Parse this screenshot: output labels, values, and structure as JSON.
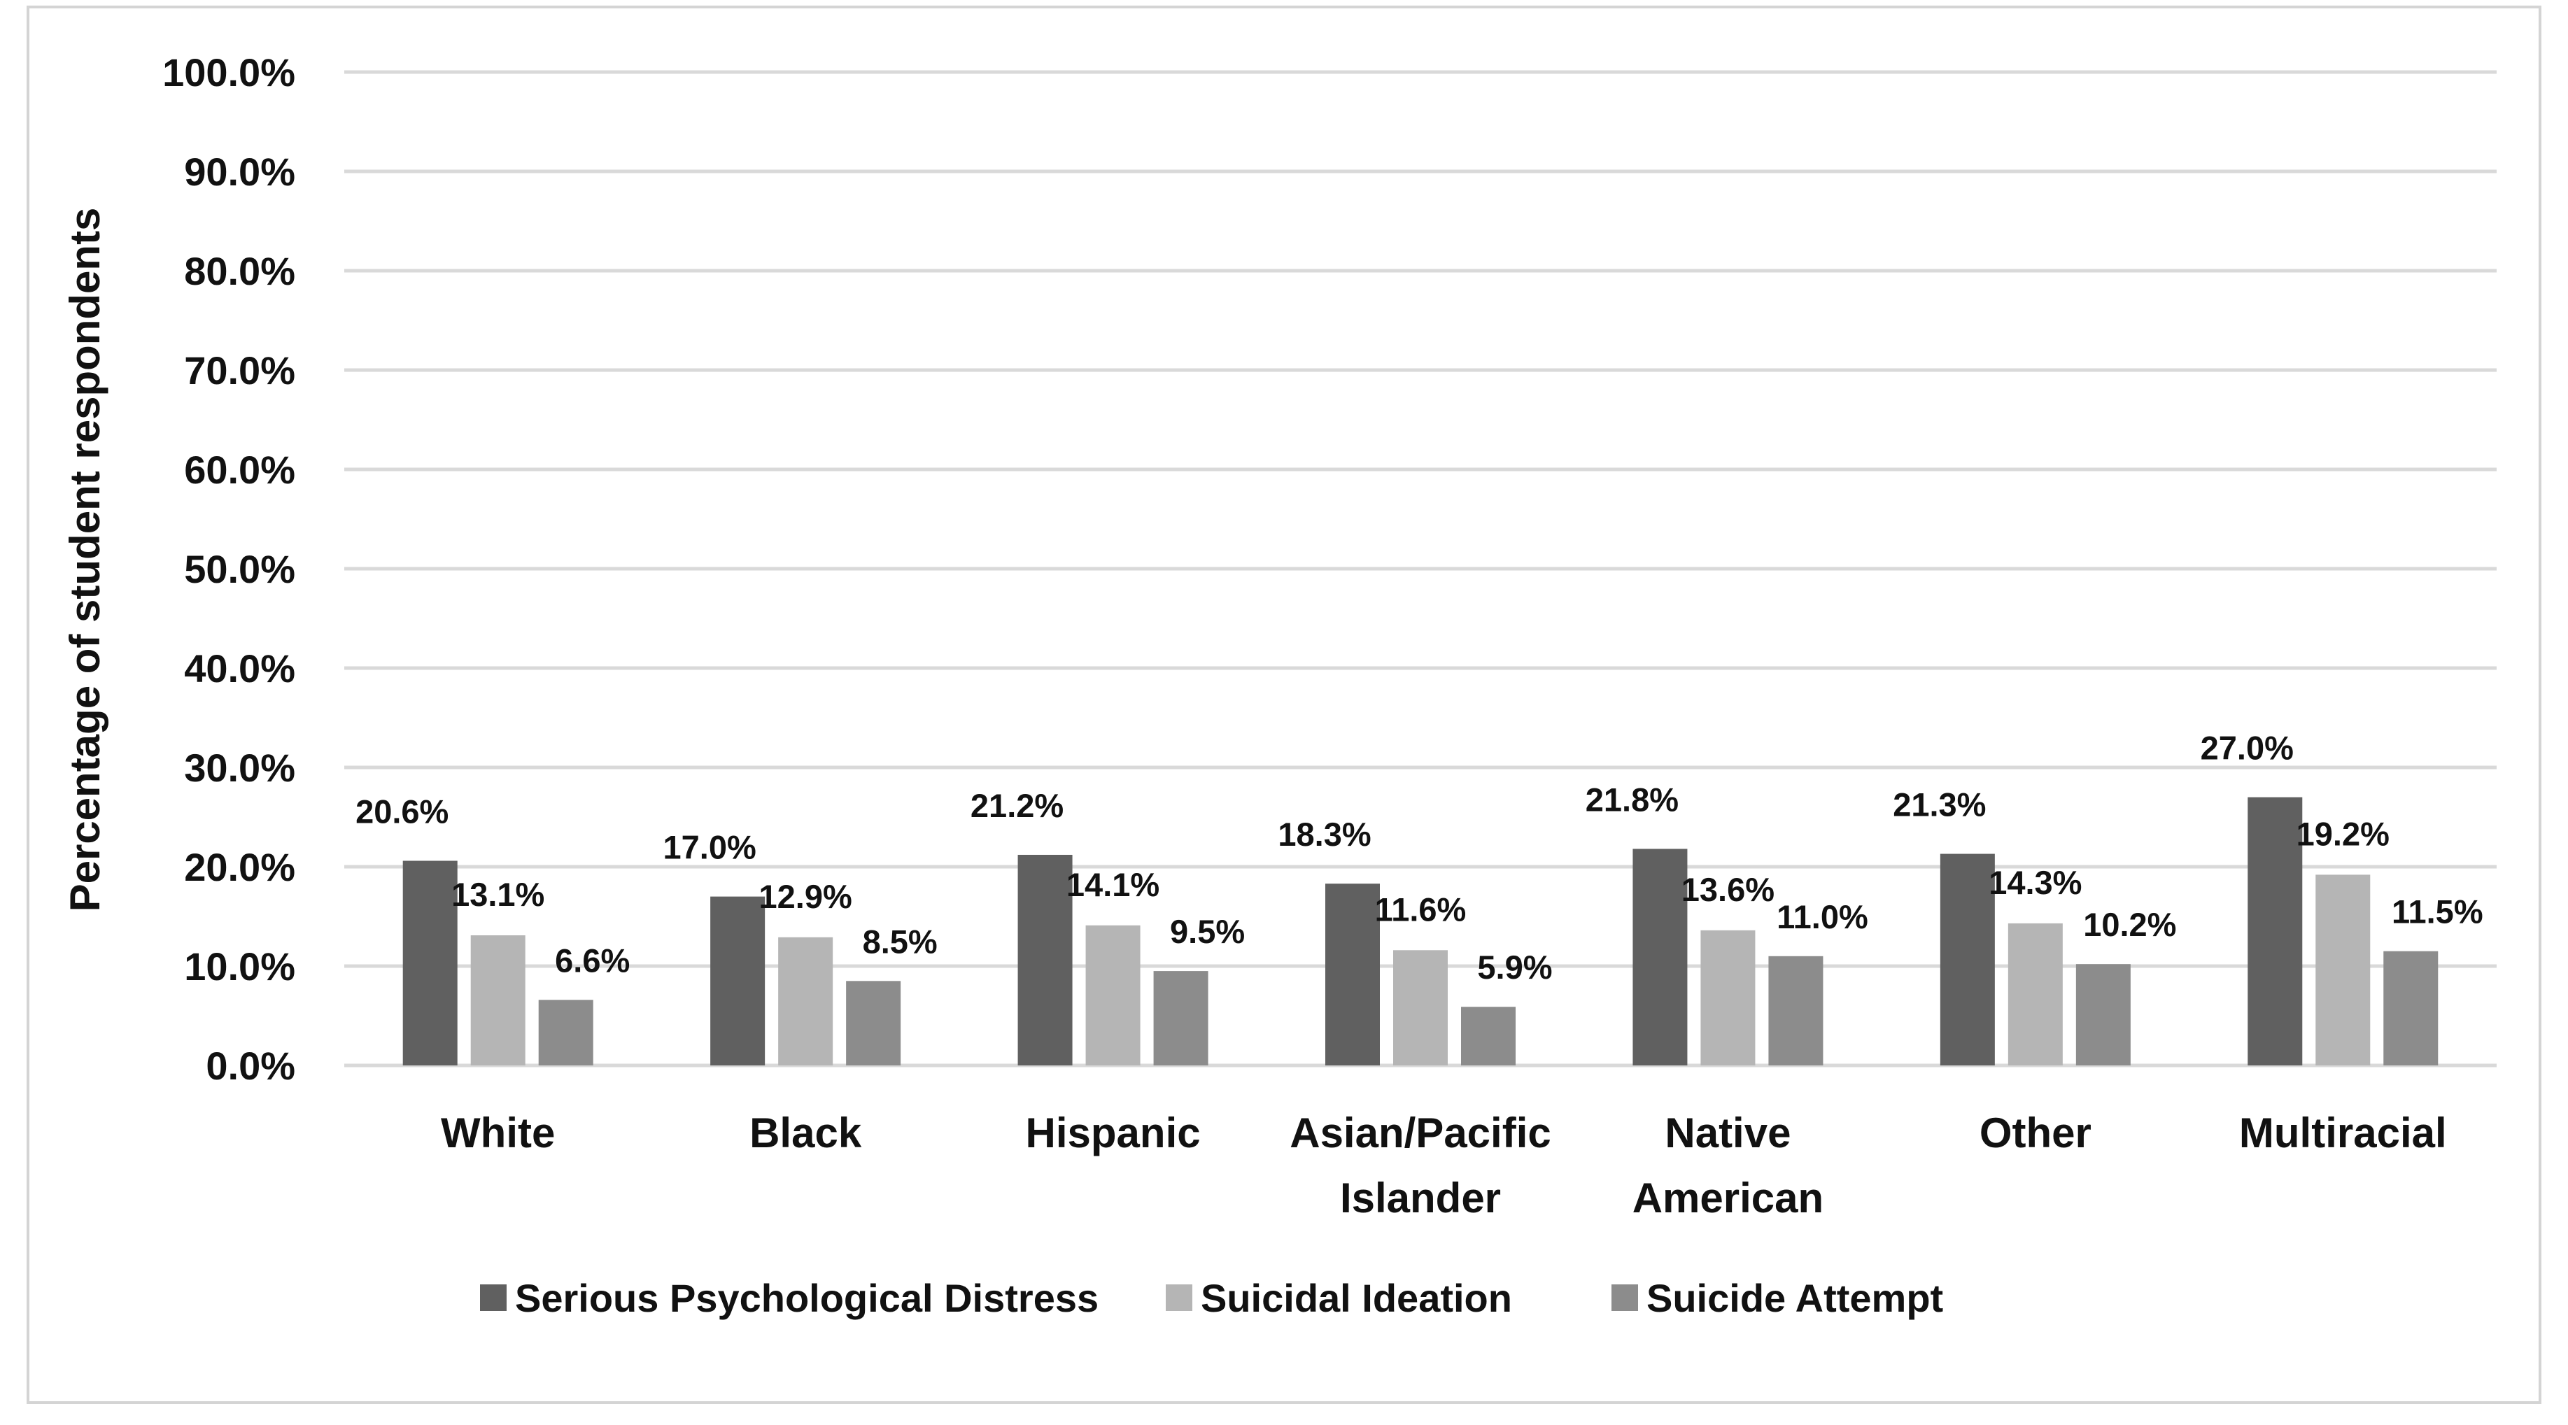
{
  "chart_data": {
    "type": "bar",
    "title": "",
    "xlabel": "",
    "ylabel": "Percentage of student respondents",
    "ylim": [
      0,
      100
    ],
    "yticks": [
      "0.0%",
      "10.0%",
      "20.0%",
      "30.0%",
      "40.0%",
      "50.0%",
      "60.0%",
      "70.0%",
      "80.0%",
      "90.0%",
      "100.0%"
    ],
    "grid": true,
    "legend_position": "bottom",
    "categories": [
      "White",
      "Black",
      "Hispanic",
      "Asian/Pacific Islander",
      "Native American",
      "Other",
      "Multiracial"
    ],
    "category_lines": [
      [
        "White"
      ],
      [
        "Black"
      ],
      [
        "Hispanic"
      ],
      [
        "Asian/Pacific",
        "Islander"
      ],
      [
        "Native",
        "American"
      ],
      [
        "Other"
      ],
      [
        "Multiracial"
      ]
    ],
    "series": [
      {
        "name": "Serious Psychological Distress",
        "color": "#606060",
        "values": [
          20.6,
          17.0,
          21.2,
          18.3,
          21.8,
          21.3,
          27.0
        ],
        "labels": [
          "20.6%",
          "17.0%",
          "21.2%",
          "18.3%",
          "21.8%",
          "21.3%",
          "27.0%"
        ]
      },
      {
        "name": "Suicidal Ideation",
        "color": "#b5b5b5",
        "values": [
          13.1,
          12.9,
          14.1,
          11.6,
          13.6,
          14.3,
          19.2
        ],
        "labels": [
          "13.1%",
          "12.9%",
          "14.1%",
          "11.6%",
          "13.6%",
          "14.3%",
          "19.2%"
        ]
      },
      {
        "name": "Suicide Attempt",
        "color": "#8c8c8c",
        "values": [
          6.6,
          8.5,
          9.5,
          5.9,
          11.0,
          10.2,
          11.5
        ],
        "labels": [
          "6.6%",
          "8.5%",
          "9.5%",
          "5.9%",
          "11.0%",
          "10.2%",
          "11.5%"
        ]
      }
    ]
  }
}
